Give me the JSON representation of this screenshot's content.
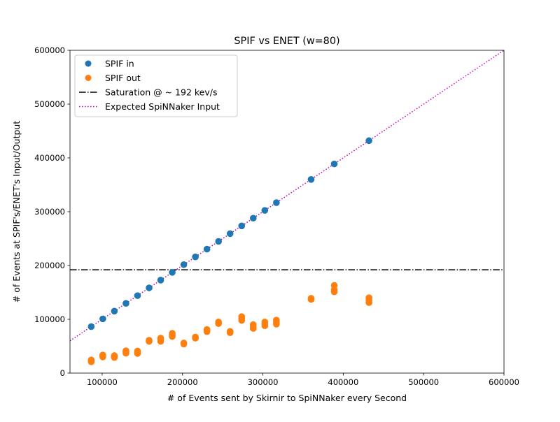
{
  "chart_data": {
    "type": "scatter",
    "title": "SPIF vs ENET (w=80)",
    "xlabel": "# of Events sent by Skirnir to SpiNNaker every Second",
    "ylabel": "# of Events at SPIF's/ENET's Input/Output",
    "xlim": [
      60000,
      600000
    ],
    "ylim": [
      0,
      600000
    ],
    "xticks": [
      100000,
      200000,
      300000,
      400000,
      500000,
      600000
    ],
    "xtick_labels": [
      "100000",
      "200000",
      "300000",
      "400000",
      "500000",
      "600000"
    ],
    "yticks": [
      0,
      100000,
      200000,
      300000,
      400000,
      500000,
      600000
    ],
    "ytick_labels": [
      "0",
      "100000",
      "200000",
      "300000",
      "400000",
      "500000",
      "600000"
    ],
    "grid": false,
    "legend_position": "top-left",
    "series": [
      {
        "name": "SPIF in",
        "kind": "scatter",
        "color": "#1f77b4",
        "points": [
          [
            86400,
            86400
          ],
          [
            100800,
            100800
          ],
          [
            115200,
            115200
          ],
          [
            129600,
            129600
          ],
          [
            144000,
            144000
          ],
          [
            158400,
            158400
          ],
          [
            172800,
            172800
          ],
          [
            187200,
            187200
          ],
          [
            201600,
            201600
          ],
          [
            216000,
            216000
          ],
          [
            230400,
            230400
          ],
          [
            244800,
            244800
          ],
          [
            259200,
            259200
          ],
          [
            273600,
            273600
          ],
          [
            288000,
            288000
          ],
          [
            302400,
            302400
          ],
          [
            316800,
            316800
          ],
          [
            360000,
            360000
          ],
          [
            388800,
            388800
          ],
          [
            432000,
            432000
          ]
        ]
      },
      {
        "name": "SPIF out",
        "kind": "scatter",
        "color": "#ff7f0e",
        "points": [
          [
            86400,
            21000
          ],
          [
            86400,
            23000
          ],
          [
            86400,
            24500
          ],
          [
            100800,
            30000
          ],
          [
            100800,
            32000
          ],
          [
            100800,
            33500
          ],
          [
            115200,
            29000
          ],
          [
            115200,
            31000
          ],
          [
            115200,
            32500
          ],
          [
            129600,
            37000
          ],
          [
            129600,
            40000
          ],
          [
            129600,
            41500
          ],
          [
            144000,
            36500
          ],
          [
            144000,
            38500
          ],
          [
            144000,
            41000
          ],
          [
            158400,
            59000
          ],
          [
            158400,
            61000
          ],
          [
            172800,
            59000
          ],
          [
            172800,
            63000
          ],
          [
            172800,
            65000
          ],
          [
            187200,
            68000
          ],
          [
            187200,
            71000
          ],
          [
            187200,
            74000
          ],
          [
            201600,
            54000
          ],
          [
            201600,
            56000
          ],
          [
            216000,
            65000
          ],
          [
            216000,
            67000
          ],
          [
            230400,
            77000
          ],
          [
            230400,
            79000
          ],
          [
            230400,
            81000
          ],
          [
            244800,
            92000
          ],
          [
            244800,
            95000
          ],
          [
            259200,
            75000
          ],
          [
            259200,
            77500
          ],
          [
            273600,
            98000
          ],
          [
            273600,
            102000
          ],
          [
            273600,
            105000
          ],
          [
            288000,
            83000
          ],
          [
            288000,
            86500
          ],
          [
            288000,
            90000
          ],
          [
            302400,
            88000
          ],
          [
            302400,
            91000
          ],
          [
            302400,
            95000
          ],
          [
            316800,
            91000
          ],
          [
            316800,
            95000
          ],
          [
            316800,
            98500
          ],
          [
            360000,
            137000
          ],
          [
            360000,
            139000
          ],
          [
            388800,
            151000
          ],
          [
            388800,
            155000
          ],
          [
            388800,
            163000
          ],
          [
            432000,
            131000
          ],
          [
            432000,
            135000
          ],
          [
            432000,
            140000
          ]
        ]
      },
      {
        "name": "Saturation @ ~ 192 kev/s",
        "kind": "hline",
        "y": 192000,
        "color": "#000000",
        "style": "dashdot"
      },
      {
        "name": "Expected SpiNNaker Input",
        "kind": "line",
        "color": "#bf00bf",
        "style": "dotted",
        "x": [
          60000,
          600000
        ],
        "y": [
          60000,
          600000
        ]
      }
    ]
  }
}
